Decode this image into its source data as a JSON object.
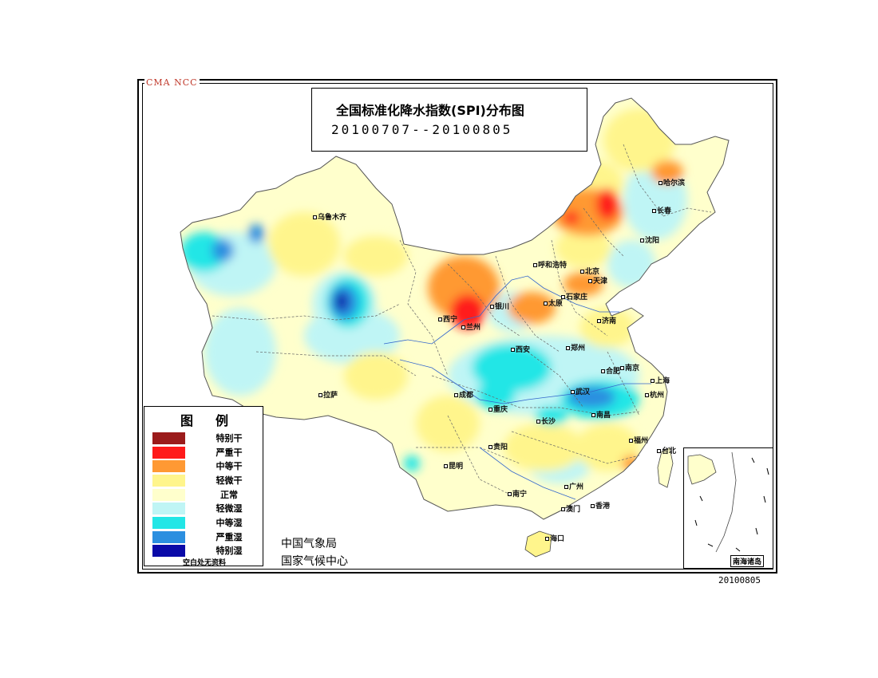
{
  "watermark": "CMA  NCC",
  "title": {
    "main": "全国标准化降水指数(SPI)分布图",
    "period": "20100707--20100805"
  },
  "legend": {
    "title": "图例",
    "items": [
      {
        "label": "特别干",
        "color": "#9b1b1b"
      },
      {
        "label": "严重干",
        "color": "#ff1a1a"
      },
      {
        "label": "中等干",
        "color": "#ff9933"
      },
      {
        "label": "轻微干",
        "color": "#fff58c"
      },
      {
        "label": "正常",
        "color": "#ffffcc"
      },
      {
        "label": "轻微湿",
        "color": "#bff5f5"
      },
      {
        "label": "中等湿",
        "color": "#22e6e6"
      },
      {
        "label": "严重湿",
        "color": "#2b8fe0"
      },
      {
        "label": "特别湿",
        "color": "#0a0aa8"
      }
    ],
    "note": "空白处无资料"
  },
  "agency": {
    "line1": "中国气象局",
    "line2": "国家气候中心"
  },
  "inset_label": "南海诸岛",
  "date_stamp": "20100805",
  "cities": [
    {
      "name": "乌鲁木齐"
    },
    {
      "name": "哈尔滨"
    },
    {
      "name": "长春"
    },
    {
      "name": "沈阳"
    },
    {
      "name": "呼和浩特"
    },
    {
      "name": "北京"
    },
    {
      "name": "天津"
    },
    {
      "name": "银川"
    },
    {
      "name": "太原"
    },
    {
      "name": "石家庄"
    },
    {
      "name": "西宁"
    },
    {
      "name": "兰州"
    },
    {
      "name": "济南"
    },
    {
      "name": "郑州"
    },
    {
      "name": "西安"
    },
    {
      "name": "合肥"
    },
    {
      "name": "南京"
    },
    {
      "name": "上海"
    },
    {
      "name": "拉萨"
    },
    {
      "name": "成都"
    },
    {
      "name": "武汉"
    },
    {
      "name": "杭州"
    },
    {
      "name": "重庆"
    },
    {
      "name": "长沙"
    },
    {
      "name": "南昌"
    },
    {
      "name": "福州"
    },
    {
      "name": "台北"
    },
    {
      "name": "贵阳"
    },
    {
      "name": "昆明"
    },
    {
      "name": "南宁"
    },
    {
      "name": "广州"
    },
    {
      "name": "澳门"
    },
    {
      "name": "香港"
    },
    {
      "name": "海口"
    }
  ]
}
